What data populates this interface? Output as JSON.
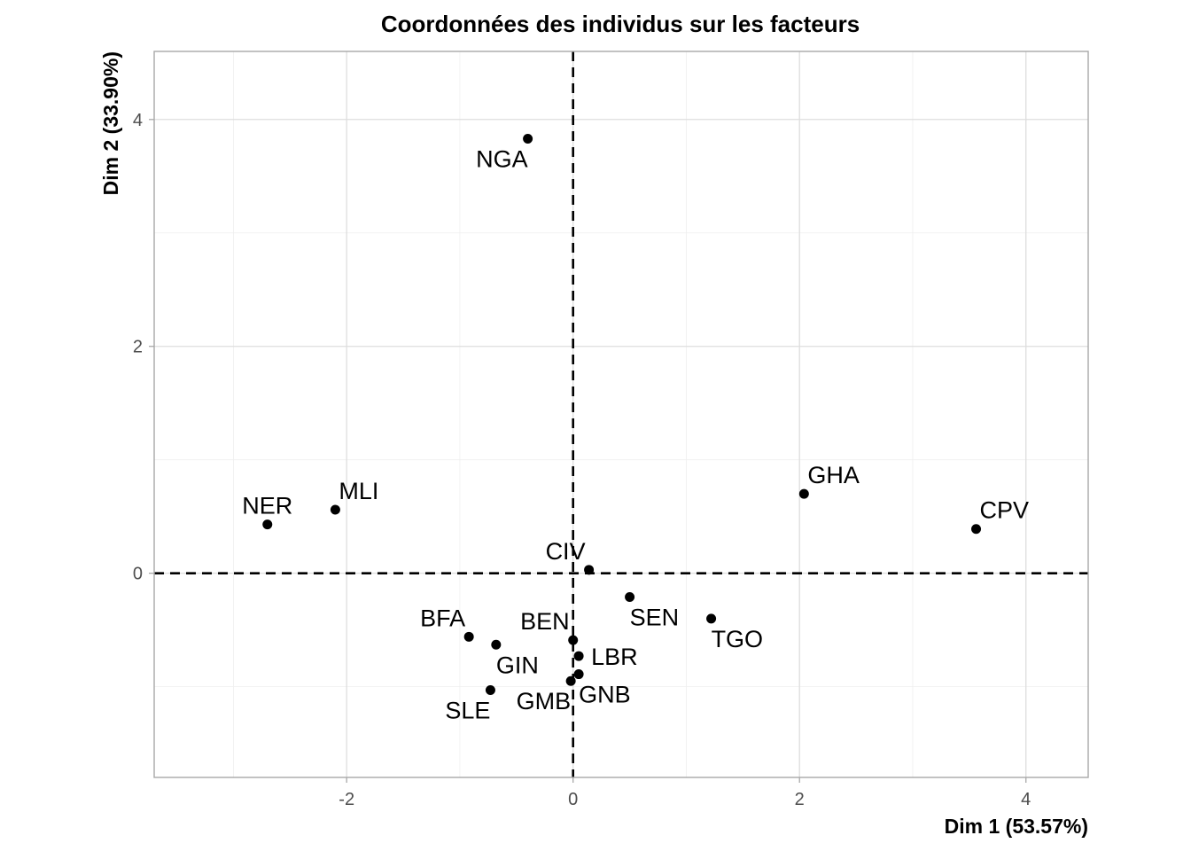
{
  "chart_data": {
    "type": "scatter",
    "title": "Coordonnées des individus sur les facteurs",
    "xlabel": "Dim 1 (53.57%)",
    "ylabel": "Dim 2 (33.90%)",
    "xlim": [
      -3.7,
      4.55
    ],
    "ylim": [
      -1.8,
      4.6
    ],
    "xticks": [
      -2,
      0,
      2,
      4
    ],
    "yticks": [
      0,
      2,
      4
    ],
    "grid": true,
    "reference_lines": {
      "x": 0,
      "y": 0,
      "style": "dashed"
    },
    "points": [
      {
        "label": "NGA",
        "x": -0.4,
        "y": 3.83,
        "label_pos": "below-left"
      },
      {
        "label": "NER",
        "x": -2.7,
        "y": 0.43,
        "label_pos": "above"
      },
      {
        "label": "MLI",
        "x": -2.1,
        "y": 0.56,
        "label_pos": "above-right"
      },
      {
        "label": "GHA",
        "x": 2.04,
        "y": 0.7,
        "label_pos": "above-right"
      },
      {
        "label": "CPV",
        "x": 3.56,
        "y": 0.39,
        "label_pos": "above-right"
      },
      {
        "label": "CIV",
        "x": 0.14,
        "y": 0.03,
        "label_pos": "above-left"
      },
      {
        "label": "SEN",
        "x": 0.5,
        "y": -0.21,
        "label_pos": "below-right"
      },
      {
        "label": "TGO",
        "x": 1.22,
        "y": -0.4,
        "label_pos": "below-right"
      },
      {
        "label": "BFA",
        "x": -0.92,
        "y": -0.56,
        "label_pos": "above-left"
      },
      {
        "label": "GIN",
        "x": -0.68,
        "y": -0.63,
        "label_pos": "below-right"
      },
      {
        "label": "BEN",
        "x": 0.0,
        "y": -0.59,
        "label_pos": "above-left"
      },
      {
        "label": "LBR",
        "x": 0.05,
        "y": -0.73,
        "label_pos": "right"
      },
      {
        "label": "GNB",
        "x": 0.05,
        "y": -0.89,
        "label_pos": "below-right"
      },
      {
        "label": "GMB",
        "x": -0.02,
        "y": -0.95,
        "label_pos": "below-left"
      },
      {
        "label": "SLE",
        "x": -0.73,
        "y": -1.03,
        "label_pos": "below-left"
      }
    ]
  }
}
